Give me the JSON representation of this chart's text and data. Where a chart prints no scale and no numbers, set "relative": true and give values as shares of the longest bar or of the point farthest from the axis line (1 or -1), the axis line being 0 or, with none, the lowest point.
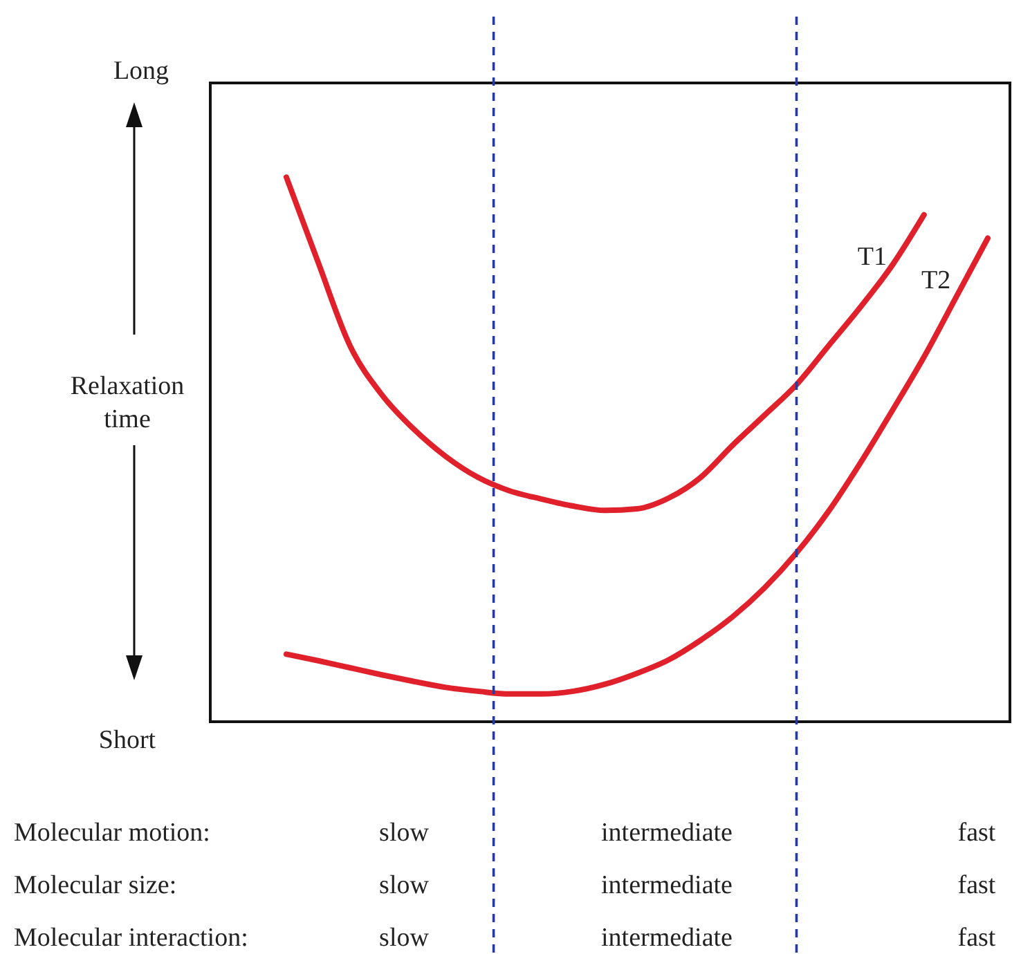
{
  "chart_data": {
    "type": "line",
    "relative": true,
    "ylabel": "Relaxation time",
    "categories": [
      null,
      null,
      null,
      null,
      null,
      null,
      null,
      null,
      null,
      null,
      null,
      null,
      null,
      null,
      null,
      null,
      null,
      null,
      null,
      null,
      null,
      null,
      null
    ],
    "series": [
      {
        "name": "T1",
        "color": "#e0202a",
        "values": [
          1.0,
          0.843,
          0.69,
          0.6,
          0.537,
          0.487,
          0.449,
          0.424,
          0.409,
          0.396,
          0.388,
          0.391,
          0.411,
          0.449,
          0.508,
          0.563,
          0.619,
          0.69,
          0.761,
          0.838,
          0.931,
          null,
          null
        ]
      },
      {
        "name": "T2",
        "color": "#e0202a",
        "values": [
          0.124,
          0.112,
          0.099,
          0.086,
          0.074,
          0.063,
          0.056,
          0.051,
          0.051,
          0.056,
          0.069,
          0.089,
          0.114,
          0.15,
          0.193,
          0.246,
          0.31,
          0.386,
          0.475,
          0.571,
          0.67,
          0.779,
          0.888
        ]
      }
    ],
    "annotations": [
      "Long",
      "Short",
      "Molecular motion:",
      "slow",
      "intermediate",
      "fast",
      "Molecular size:",
      "slow",
      "intermediate",
      "fast",
      "Molecular interaction:",
      "slow",
      "intermediate",
      "fast"
    ],
    "line_style": "solid",
    "marker": "none"
  }
}
